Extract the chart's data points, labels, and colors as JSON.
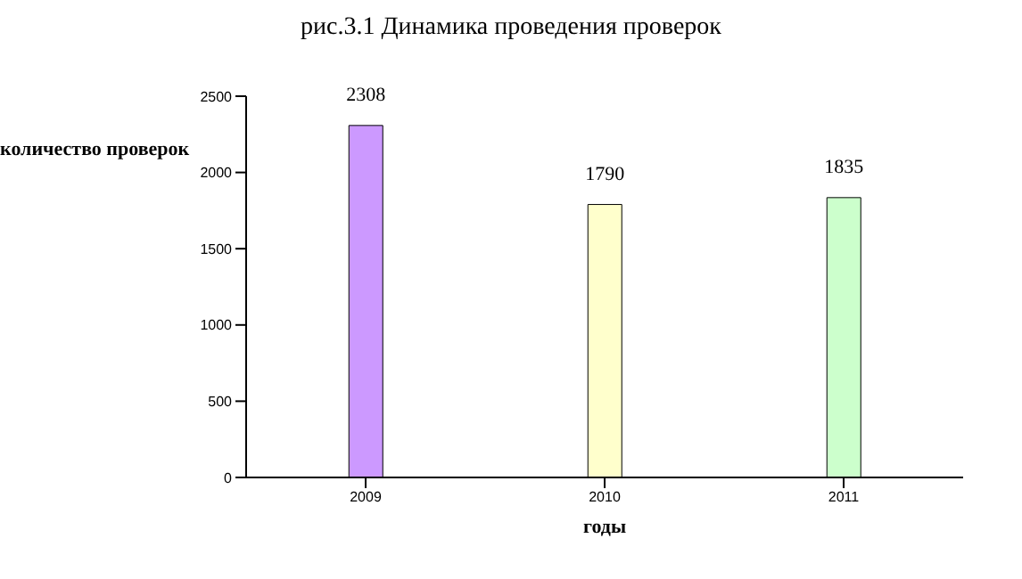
{
  "chart_data": {
    "type": "bar",
    "title": "рис.3.1 Динамика проведения проверок",
    "xlabel": "годы",
    "ylabel": "количество проверок",
    "categories": [
      "2009",
      "2010",
      "2011"
    ],
    "values": [
      2308,
      1790,
      1835
    ],
    "colors": [
      "#cc99ff",
      "#ffffcc",
      "#ccffcc"
    ],
    "ylim": [
      0,
      2500
    ],
    "yticks": [
      0,
      500,
      1000,
      1500,
      2000,
      2500
    ],
    "grid": false,
    "data_labels": true
  }
}
